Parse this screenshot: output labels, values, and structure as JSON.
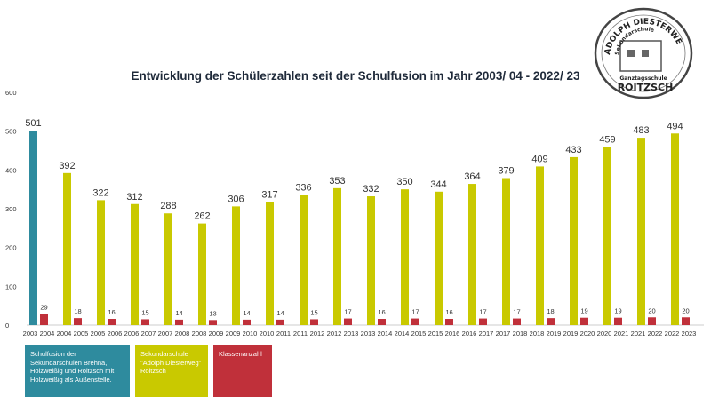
{
  "chart_data": {
    "type": "bar",
    "title": "Entwicklung der Schülerzahlen seit der Schulfusion im Jahr 2003/ 04 - 2022/ 23",
    "ylim": [
      0,
      600
    ],
    "yticks": [
      0,
      100,
      200,
      300,
      400,
      500,
      600
    ],
    "grid": false,
    "legend_placement": "bottom-left",
    "categories": [
      [
        "2003",
        "2004"
      ],
      [
        "2004",
        "2005"
      ],
      [
        "2005",
        "2006"
      ],
      [
        "2006",
        "2007"
      ],
      [
        "2007",
        "2008"
      ],
      [
        "2008",
        "2009"
      ],
      [
        "2009",
        "2010"
      ],
      [
        "2010",
        "2011"
      ],
      [
        "2011",
        "2012"
      ],
      [
        "2012",
        "2013"
      ],
      [
        "2013",
        "2014"
      ],
      [
        "2014",
        "2015"
      ],
      [
        "2015",
        "2016"
      ],
      [
        "2016",
        "2017"
      ],
      [
        "2017",
        "2018"
      ],
      [
        "2018",
        "2019"
      ],
      [
        "2019",
        "2020"
      ],
      [
        "2020",
        "2021"
      ],
      [
        "2021",
        "2022"
      ],
      [
        "2022",
        "2023"
      ]
    ],
    "series": [
      {
        "name": "Schulfusion der Sekundarschulen Brehna, Holzweißig und Roitzsch mit Holzweißig als Außenstelle.",
        "color": "#2e8b9e",
        "values": [
          501,
          null,
          null,
          null,
          null,
          null,
          null,
          null,
          null,
          null,
          null,
          null,
          null,
          null,
          null,
          null,
          null,
          null,
          null,
          null
        ]
      },
      {
        "name": "Sekundarschule \"Adolph Diesterweg\" Roitzsch",
        "color": "#c9c900",
        "values": [
          null,
          392,
          322,
          312,
          288,
          262,
          306,
          317,
          336,
          353,
          332,
          350,
          344,
          364,
          379,
          409,
          433,
          459,
          483,
          494
        ]
      },
      {
        "name": "Klassenanzahl",
        "color": "#c0303a",
        "values": [
          29,
          18,
          16,
          15,
          14,
          13,
          14,
          14,
          15,
          17,
          16,
          17,
          16,
          17,
          17,
          18,
          19,
          19,
          20,
          20
        ]
      }
    ]
  },
  "legend": {
    "fusion": "Schulfusion der Sekundarschulen Brehna, Holzweißig und Roitzsch mit Holzweißig als Außenstelle.",
    "school": "Sekundarschule \"Adolph Diesterweg\" Roitzsch",
    "classes": "Klassenanzahl"
  },
  "logo": {
    "top_text": "ADOLPH DIESTERWEG",
    "sub_text": "Sekundarschule",
    "middle_text": "Ganztagsschule",
    "bottom_text": "ROITZSCH"
  }
}
